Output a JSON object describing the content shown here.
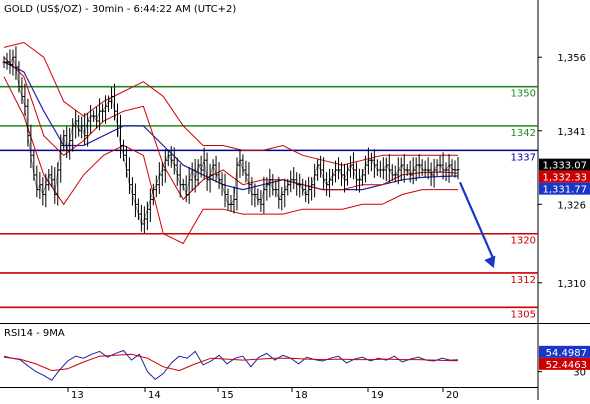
{
  "colors": {
    "price": "#000000",
    "bollinger": "#cc0000",
    "ma_blue": "#2222aa",
    "ma_red": "#cc0000",
    "green_level": "#1f8a1f",
    "blue_level": "#000099",
    "red_level": "#cc0000",
    "arrow": "#1a35c8",
    "axis_text": "#000000",
    "bid_badge_bg": "#000000",
    "ask_badge_bg": "#1a35c8",
    "red_badge_bg": "#cc0000"
  },
  "chart_data": [
    {
      "type": "line",
      "title": "GOLD (US$/OZ) - 30min - 6:44:22 AM (UTC+2)",
      "x_labels": [
        "13",
        "14",
        "15",
        "18",
        "19",
        "20"
      ],
      "y_ticks": [
        1356,
        1341,
        1326,
        1310
      ],
      "ylim": [
        1302,
        1364
      ],
      "grid": false,
      "price_labels": [
        {
          "id": "last",
          "value": 1333.07,
          "text": "1,333.07"
        },
        {
          "id": "red",
          "value": 1332.33,
          "text": "1,332.33"
        },
        {
          "id": "blue",
          "value": 1331.77,
          "text": "1,331.77"
        }
      ],
      "levels": [
        {
          "value": 1350,
          "label": "1350",
          "color": "green"
        },
        {
          "value": 1342,
          "label": "1342",
          "color": "green"
        },
        {
          "value": 1337,
          "label": "1337",
          "color": "blue"
        },
        {
          "value": 1320,
          "label": "1320",
          "color": "red"
        },
        {
          "value": 1312,
          "label": "1312",
          "color": "red"
        },
        {
          "value": 1305,
          "label": "1305",
          "color": "red"
        }
      ],
      "series": [
        {
          "kind": "price",
          "x": [
            0,
            3,
            6,
            9,
            12,
            15,
            18,
            21,
            24,
            27,
            30,
            33,
            36,
            39,
            42,
            45,
            48,
            51,
            54,
            57,
            60,
            63,
            66,
            69,
            72,
            75,
            78,
            81,
            84,
            87,
            90,
            93,
            96,
            99,
            102,
            105,
            108,
            111,
            114,
            117,
            120,
            123,
            126,
            129,
            132,
            135,
            138,
            141,
            144,
            147,
            150,
            153,
            156,
            159,
            162,
            165,
            168,
            171,
            174,
            177,
            180,
            183,
            186,
            189,
            192,
            195,
            198,
            201,
            204,
            207,
            210,
            213,
            216,
            219,
            222,
            225,
            228,
            231,
            234,
            237,
            240,
            243,
            246,
            249,
            252,
            255,
            258,
            261,
            264,
            267,
            270,
            273,
            276,
            279,
            282,
            285,
            288,
            291,
            294,
            297,
            300,
            303,
            306,
            309,
            312,
            315,
            318,
            321,
            324,
            327,
            330,
            333,
            336,
            339,
            342,
            345,
            348,
            351,
            354,
            357,
            360,
            363,
            366,
            369,
            372,
            375,
            378,
            381,
            384,
            387,
            390,
            393,
            396,
            399,
            402,
            405,
            408,
            411,
            414,
            417,
            420,
            423,
            426,
            429,
            432,
            435,
            438,
            441,
            444,
            447,
            450,
            453,
            456
          ],
          "values": [
            1355,
            1355,
            1354.5,
            1356,
            1354,
            1350,
            1348,
            1346,
            1340,
            1336,
            1332,
            1329,
            1330,
            1328,
            1330,
            1332,
            1331,
            1328,
            1333,
            1338,
            1340,
            1337,
            1339,
            1342,
            1343,
            1341,
            1342,
            1340,
            1343,
            1344,
            1344,
            1343,
            1345,
            1345,
            1346,
            1347,
            1348,
            1345,
            1342,
            1338,
            1336,
            1333,
            1330,
            1328,
            1326,
            1324,
            1322,
            1323,
            1325,
            1327,
            1329,
            1330,
            1332,
            1333,
            1335,
            1336,
            1335,
            1334,
            1332,
            1330,
            1330,
            1328,
            1331,
            1333,
            1331,
            1334,
            1333,
            1335,
            1331,
            1332,
            1334,
            1332,
            1331,
            1330,
            1328,
            1326,
            1326,
            1327,
            1334,
            1335,
            1333,
            1332,
            1330,
            1328,
            1328,
            1327,
            1326,
            1329,
            1330,
            1331,
            1329,
            1329,
            1327,
            1328,
            1329,
            1330,
            1331,
            1331,
            1330,
            1330,
            1329,
            1328,
            1329,
            1330,
            1332,
            1334,
            1333,
            1331,
            1330,
            1331,
            1332,
            1333,
            1333,
            1332,
            1331,
            1333,
            1334,
            1333,
            1331,
            1331,
            1332,
            1334,
            1335,
            1335,
            1334,
            1333,
            1333,
            1333,
            1334,
            1333,
            1332,
            1332,
            1333,
            1334,
            1333,
            1333,
            1332,
            1333,
            1334,
            1334,
            1333,
            1333,
            1333,
            1332,
            1333,
            1334,
            1334,
            1333,
            1333,
            1334,
            1333.07,
            1333,
            1333.07
          ]
        },
        {
          "kind": "ma_blue",
          "x": [
            0,
            20,
            40,
            60,
            80,
            100,
            120,
            140,
            160,
            180,
            200,
            220,
            240,
            260,
            280,
            300,
            320,
            340,
            360,
            380,
            400,
            420,
            440,
            456
          ],
          "values": [
            1355,
            1353,
            1345,
            1338,
            1338,
            1340,
            1342,
            1342,
            1338,
            1334,
            1332,
            1330,
            1329,
            1330,
            1331,
            1330,
            1329,
            1329,
            1329,
            1330,
            1331,
            1331.5,
            1331.7,
            1331.77
          ]
        },
        {
          "kind": "ma_red",
          "x": [
            0,
            20,
            40,
            60,
            80,
            100,
            120,
            140,
            160,
            180,
            200,
            220,
            240,
            260,
            280,
            300,
            320,
            340,
            360,
            380,
            400,
            420,
            440,
            456
          ],
          "values": [
            1356,
            1352,
            1340,
            1336,
            1339,
            1343,
            1345,
            1346,
            1334,
            1327,
            1331,
            1333,
            1330,
            1331,
            1331,
            1330,
            1329,
            1329,
            1330,
            1330,
            1332,
            1332.5,
            1332.6,
            1332.33
          ]
        },
        {
          "kind": "boll_upper",
          "x": [
            0,
            20,
            40,
            60,
            80,
            100,
            120,
            140,
            160,
            180,
            200,
            220,
            240,
            260,
            280,
            300,
            320,
            340,
            360,
            380,
            400,
            420,
            440,
            456
          ],
          "values": [
            1358,
            1359,
            1356,
            1347,
            1344,
            1347,
            1349,
            1351,
            1348,
            1342,
            1338,
            1338,
            1337,
            1337,
            1338,
            1336,
            1335,
            1334,
            1335,
            1336,
            1336,
            1336,
            1336,
            1336
          ]
        },
        {
          "kind": "boll_lower",
          "x": [
            0,
            20,
            40,
            60,
            80,
            100,
            120,
            140,
            160,
            180,
            200,
            220,
            240,
            260,
            280,
            300,
            320,
            340,
            360,
            380,
            400,
            420,
            440,
            456
          ],
          "values": [
            1352,
            1344,
            1332,
            1326,
            1332,
            1336,
            1338,
            1336,
            1320,
            1318,
            1325,
            1325,
            1324,
            1324,
            1324,
            1325,
            1325,
            1325,
            1326,
            1326,
            1328,
            1329,
            1329,
            1329
          ]
        }
      ],
      "arrow": {
        "from": [
          458,
          1330.5
        ],
        "to": [
          492,
          1313
        ]
      }
    },
    {
      "type": "line",
      "title": "RSI14 - 9MA",
      "ylim": [
        0,
        100
      ],
      "y_ticks": [
        30
      ],
      "value_labels": [
        {
          "id": "rsi",
          "value": 54.4987,
          "text": "54.4987"
        },
        {
          "id": "ma",
          "value": 52.4463,
          "text": "52.4463"
        }
      ],
      "series": [
        {
          "kind": "rsi",
          "x": [
            0,
            8,
            16,
            24,
            32,
            40,
            48,
            56,
            64,
            72,
            80,
            88,
            96,
            104,
            112,
            120,
            128,
            136,
            144,
            152,
            160,
            168,
            176,
            184,
            192,
            200,
            208,
            216,
            224,
            232,
            240,
            248,
            256,
            264,
            272,
            280,
            288,
            296,
            304,
            312,
            320,
            328,
            336,
            344,
            352,
            360,
            368,
            376,
            384,
            392,
            400,
            408,
            416,
            424,
            432,
            440,
            448,
            456
          ],
          "values": [
            62,
            58,
            55,
            42,
            30,
            22,
            12,
            34,
            52,
            62,
            58,
            66,
            72,
            60,
            68,
            74,
            54,
            66,
            30,
            14,
            26,
            48,
            62,
            58,
            72,
            44,
            52,
            64,
            46,
            58,
            62,
            40,
            60,
            68,
            54,
            64,
            58,
            46,
            60,
            55,
            52,
            58,
            62,
            48,
            56,
            60,
            52,
            58,
            54,
            62,
            50,
            56,
            60,
            54,
            52,
            58,
            54,
            54.4987
          ]
        },
        {
          "kind": "rsi_ma",
          "x": [
            0,
            16,
            32,
            48,
            64,
            80,
            96,
            112,
            128,
            144,
            160,
            176,
            192,
            208,
            224,
            240,
            256,
            272,
            288,
            304,
            320,
            336,
            352,
            368,
            384,
            400,
            416,
            432,
            448,
            456
          ],
          "values": [
            60,
            56,
            46,
            32,
            36,
            50,
            62,
            64,
            66,
            58,
            40,
            32,
            46,
            58,
            56,
            54,
            56,
            58,
            58,
            56,
            55,
            56,
            55,
            55,
            56,
            55,
            55,
            54,
            53,
            52.4463
          ]
        }
      ]
    }
  ]
}
